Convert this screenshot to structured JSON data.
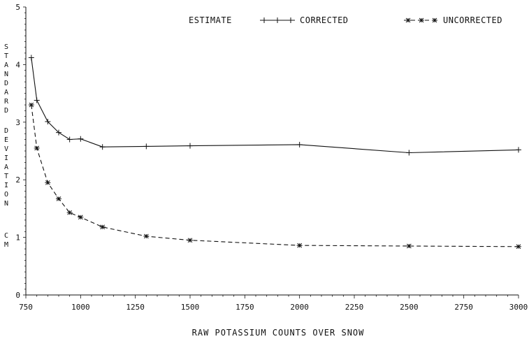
{
  "chart_data": {
    "type": "line",
    "title": "",
    "xlabel": "RAW POTASSIUM COUNTS OVER SNOW",
    "ylabel": "STANDARD DEVIATION CM",
    "ylabel_lines": [
      "STANDARD",
      "DEVIATION",
      "CM"
    ],
    "xlim": [
      750,
      3000
    ],
    "ylim": [
      0,
      5
    ],
    "x_ticks": [
      750,
      1000,
      1250,
      1500,
      1750,
      2000,
      2250,
      2500,
      2750,
      3000
    ],
    "y_ticks": [
      0,
      1,
      2,
      3,
      4,
      5
    ],
    "grid": false,
    "legend": {
      "placement": "top",
      "heading": "ESTIMATE",
      "entries": [
        "CORRECTED",
        "UNCORRECTED"
      ]
    },
    "series": [
      {
        "name": "CORRECTED",
        "style": "solid",
        "marker": "plus",
        "x": [
          775,
          800,
          850,
          900,
          950,
          1000,
          1100,
          1300,
          1500,
          2000,
          2500,
          3000
        ],
        "y": [
          4.12,
          3.38,
          3.01,
          2.82,
          2.7,
          2.71,
          2.57,
          2.58,
          2.59,
          2.61,
          2.47,
          2.52
        ]
      },
      {
        "name": "UNCORRECTED",
        "style": "dashed",
        "marker": "star",
        "x": [
          775,
          800,
          850,
          900,
          950,
          1000,
          1100,
          1300,
          1500,
          2000,
          2500,
          3000
        ],
        "y": [
          3.3,
          2.55,
          1.95,
          1.67,
          1.43,
          1.35,
          1.18,
          1.02,
          0.95,
          0.86,
          0.85,
          0.84
        ]
      }
    ]
  }
}
